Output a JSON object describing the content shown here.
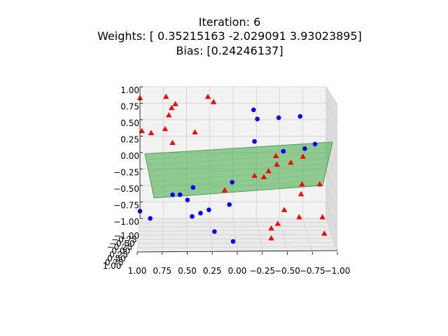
{
  "chart_data": {
    "type": "scatter",
    "title": [
      "Iteration: 6",
      "Weights: [ 0.35215163 -2.029091    3.93023895]",
      "Bias: [0.24246137]"
    ],
    "x_ticks": [
      "1.00",
      "0.75",
      "0.50",
      "0.25",
      "0.00",
      "−0.25",
      "−0.50",
      "−0.75",
      "−1.00"
    ],
    "z_ticks": [
      "1.00",
      "0.75",
      "0.50",
      "0.25",
      "0.00",
      "−0.25",
      "−0.50",
      "−0.75",
      "−1.00"
    ],
    "y_ticks": [
      "−1.00",
      "−0.75",
      "−0.50",
      "−0.25",
      "0.00",
      "0.25",
      "0.50",
      "0.75",
      "1.00"
    ],
    "plane_color": "#4caf50",
    "series": [
      {
        "marker": "circle",
        "color": "#0000ff",
        "points": [
          {
            "x": -0.22,
            "z": 0.65
          },
          {
            "x": -0.26,
            "z": 0.51
          },
          {
            "x": -0.49,
            "z": 0.53
          },
          {
            "x": -0.72,
            "z": 0.55
          },
          {
            "x": -0.23,
            "z": 0.17
          },
          {
            "x": -0.54,
            "z": 0.02
          },
          {
            "x": -0.77,
            "z": 0.06
          },
          {
            "x": -0.88,
            "z": 0.13
          },
          {
            "x": 0.01,
            "z": -0.45
          },
          {
            "x": 0.04,
            "z": -0.79
          },
          {
            "x": 0.43,
            "z": -0.53
          },
          {
            "x": 0.57,
            "z": -0.64
          },
          {
            "x": 0.65,
            "z": -0.64
          },
          {
            "x": 0.49,
            "z": -0.72
          },
          {
            "x": 0.26,
            "z": -0.87
          },
          {
            "x": 0.35,
            "z": -0.92
          },
          {
            "x": 0.44,
            "z": -0.97
          },
          {
            "x": 1.0,
            "z": -0.89
          },
          {
            "x": 0.89,
            "z": -1.0
          },
          {
            "x": 0.2,
            "z": -1.2
          },
          {
            "x": 0.0,
            "z": -1.35
          }
        ]
      },
      {
        "marker": "triangle",
        "color": "#ff0000",
        "points": [
          {
            "x": 1.0,
            "z": 0.83
          },
          {
            "x": 0.72,
            "z": 0.85
          },
          {
            "x": 0.62,
            "z": 0.74
          },
          {
            "x": 0.66,
            "z": 0.68
          },
          {
            "x": 0.69,
            "z": 0.57
          },
          {
            "x": 0.27,
            "z": 0.85
          },
          {
            "x": 0.21,
            "z": 0.77
          },
          {
            "x": 0.98,
            "z": 0.33
          },
          {
            "x": 0.88,
            "z": 0.3
          },
          {
            "x": 0.73,
            "z": 0.36
          },
          {
            "x": 0.65,
            "z": 0.15
          },
          {
            "x": 0.41,
            "z": 0.31
          },
          {
            "x": -0.46,
            "z": -0.05
          },
          {
            "x": -0.47,
            "z": -0.18
          },
          {
            "x": -0.75,
            "z": -0.06
          },
          {
            "x": -0.62,
            "z": -0.15
          },
          {
            "x": -0.38,
            "z": -0.28
          },
          {
            "x": -0.23,
            "z": -0.35
          },
          {
            "x": -0.33,
            "z": -0.37
          },
          {
            "x": -0.74,
            "z": -0.48
          },
          {
            "x": -0.93,
            "z": -0.48
          },
          {
            "x": 0.09,
            "z": -0.57
          },
          {
            "x": -0.73,
            "z": -0.63
          },
          {
            "x": -0.55,
            "z": -0.87
          },
          {
            "x": -0.71,
            "z": -0.98
          },
          {
            "x": -0.96,
            "z": -0.98
          },
          {
            "x": -0.48,
            "z": -1.08
          },
          {
            "x": -0.41,
            "z": -1.15
          },
          {
            "x": -0.98,
            "z": -1.23
          },
          {
            "x": -0.41,
            "z": -1.3
          }
        ]
      }
    ]
  }
}
